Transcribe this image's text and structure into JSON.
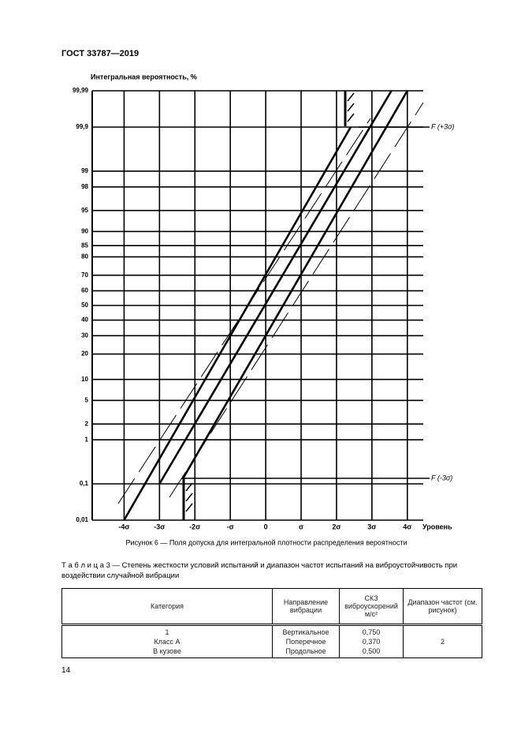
{
  "header": {
    "title": "ГОСТ 33787—2019"
  },
  "chart_data": {
    "type": "line",
    "y_label": "Интегральная вероятность, %",
    "x_label": "Уровень",
    "caption": "Рисунок 6 — Поля допуска для интегральной плотности распределения вероятности",
    "yscale": "probability",
    "ylim": [
      0.01,
      99.99
    ],
    "yticks": [
      {
        "value": 0.01,
        "label": "0,01"
      },
      {
        "value": 0.1,
        "label": "0,1"
      },
      1,
      2,
      5,
      10,
      20,
      30,
      40,
      50,
      60,
      70,
      80,
      85,
      90,
      95,
      98,
      99,
      {
        "value": 99.9,
        "label": "99,9"
      },
      {
        "value": 99.99,
        "label": "99,99"
      }
    ],
    "xlim": [
      -4.9,
      4.45
    ],
    "xticks": [
      {
        "value": -4,
        "label": "-4σ"
      },
      {
        "value": -3,
        "label": "-3σ"
      },
      {
        "value": -2,
        "label": "-2σ"
      },
      {
        "value": -1,
        "label": "-σ"
      },
      0,
      {
        "value": 1,
        "label": "σ"
      },
      {
        "value": 2,
        "label": "2σ"
      },
      {
        "value": 3,
        "label": "3σ"
      },
      {
        "value": 4,
        "label": "4σ"
      }
    ],
    "grid": true,
    "series": [
      {
        "color": "#000000",
        "x": [
          -4,
          2.4
        ],
        "values": [
          0.01,
          99.9
        ]
      },
      {
        "color": "#000000",
        "x": [
          -3,
          3.55
        ],
        "values": [
          0.1,
          99.99
        ]
      },
      {
        "color": "#000000",
        "x": [
          -2.35,
          4
        ],
        "values": [
          0.13,
          99.99
        ]
      }
    ],
    "annotations": [
      {
        "text": "F (+3σ)"
      },
      {
        "text": "F (-3σ)"
      }
    ]
  },
  "table": {
    "title": "Т а б л и ц а  3 — Степень жесткости условий испытаний и диапазон частот испытаний на виброустойчивость при воздействии случайной вибрации",
    "columns": [
      "Категория",
      "Направление вибрации",
      "СКЗ виброускорений м/с²",
      "Диапазон частот (см. рисунок)"
    ],
    "rows": [
      [
        [
          "1",
          "Класс А",
          "В кузове"
        ],
        [
          "Вертикальное",
          "Поперечное",
          "Продольное"
        ],
        [
          "0,750",
          "0,370",
          "0,500"
        ],
        [
          "2"
        ]
      ]
    ]
  },
  "page_number": "14"
}
